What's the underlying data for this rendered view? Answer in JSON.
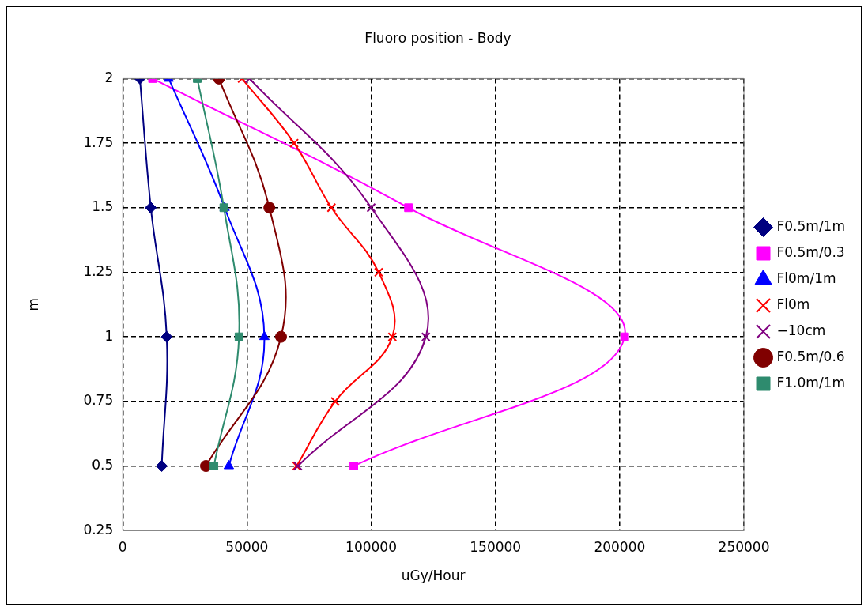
{
  "chart_data": {
    "type": "line",
    "title": "Fluoro position - Body",
    "xlabel": "uGy/Hour",
    "ylabel": "m",
    "xlim": [
      0,
      250000
    ],
    "xticks": [
      0,
      50000,
      100000,
      150000,
      200000,
      250000
    ],
    "ylim": [
      0.25,
      2
    ],
    "yticks": [
      0.25,
      0.5,
      0.75,
      1,
      1.25,
      1.5,
      1.75,
      2
    ],
    "grid": true,
    "legend": "right",
    "line_style": "solid",
    "series": [
      {
        "name": "F0.5m/1m",
        "color": "#000080",
        "marker": "diamond",
        "x": [
          6900,
          11300,
          17700,
          15700
        ],
        "values": [
          2,
          1.5,
          1,
          0.5
        ]
      },
      {
        "name": "F0.5m/0.3",
        "color": "#ff00ff",
        "marker": "square",
        "x": [
          12000,
          115000,
          202000,
          93000
        ],
        "values": [
          2,
          1.5,
          1,
          0.5
        ]
      },
      {
        "name": "Fl0m/1m",
        "color": "#0000ff",
        "marker": "triangle",
        "x": [
          18500,
          41000,
          57000,
          42700
        ],
        "values": [
          2,
          1.5,
          1,
          0.5
        ]
      },
      {
        "name": "Fl0m",
        "color": "#ff0000",
        "marker": "cross",
        "x": [
          48000,
          69000,
          84000,
          103000,
          108500,
          85500,
          70000
        ],
        "values": [
          2,
          1.75,
          1.5,
          1.25,
          1,
          0.75,
          0.5
        ]
      },
      {
        "name": "−10cm",
        "color": "#800080",
        "marker": "cross",
        "x": [
          51000,
          100000,
          122000,
          70500
        ],
        "values": [
          2,
          1.5,
          1,
          0.5
        ]
      },
      {
        "name": "F0.5m/0.6",
        "color": "#800000",
        "marker": "circle",
        "x": [
          38700,
          59000,
          63700,
          33500
        ],
        "values": [
          2,
          1.5,
          1,
          0.5
        ]
      },
      {
        "name": "F1.0m/1m",
        "color": "#2e8b6e",
        "marker": "square",
        "x": [
          30000,
          40700,
          46800,
          36700
        ],
        "values": [
          2,
          1.5,
          1,
          0.5
        ]
      }
    ]
  }
}
